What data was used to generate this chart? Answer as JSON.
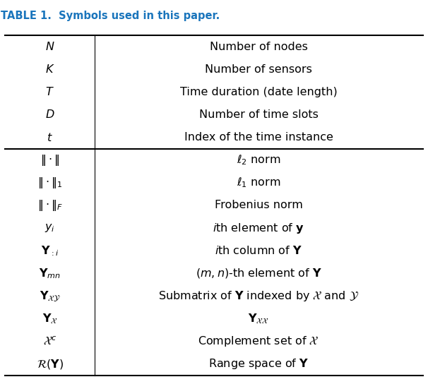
{
  "title": "TABLE 1.  Symbols used in this paper.",
  "title_fontsize": 10.5,
  "col_split": 0.22,
  "rows": [
    {
      "sym": "$N$",
      "desc": "Number of nodes",
      "group": 1
    },
    {
      "sym": "$K$",
      "desc": "Number of sensors",
      "group": 1
    },
    {
      "sym": "$T$",
      "desc": "Time duration (date length)",
      "group": 1
    },
    {
      "sym": "$D$",
      "desc": "Number of time slots",
      "group": 1
    },
    {
      "sym": "$t$",
      "desc": "Index of the time instance",
      "group": 1
    },
    {
      "sym": "$\\|\\cdot\\|$",
      "desc": "$\\ell_2$ norm",
      "group": 2
    },
    {
      "sym": "$\\|\\cdot\\|_1$",
      "desc": "$\\ell_1$ norm",
      "group": 2
    },
    {
      "sym": "$\\|\\cdot\\|_F$",
      "desc": "Frobenius norm",
      "group": 2
    },
    {
      "sym": "$y_i$",
      "desc": "$i$th element of $\\mathbf{y}$",
      "group": 2
    },
    {
      "sym": "$\\mathbf{Y}_{:i}$",
      "desc": "$i$th column of $\\mathbf{Y}$",
      "group": 2
    },
    {
      "sym": "$\\mathbf{Y}_{mn}$",
      "desc": "$(m,n)$-th element of $\\mathbf{Y}$",
      "group": 2
    },
    {
      "sym": "$\\mathbf{Y}_{\\mathcal{X}\\mathcal{Y}}$",
      "desc": "Submatrix of $\\mathbf{Y}$ indexed by $\\mathcal{X}$ and $\\mathcal{Y}$",
      "group": 2
    },
    {
      "sym": "$\\mathbf{Y}_{\\mathcal{X}}$",
      "desc": "$\\mathbf{Y}_{\\mathcal{X}\\mathcal{X}}$",
      "group": 2
    },
    {
      "sym": "$\\mathcal{X}^c$",
      "desc": "Complement set of $\\mathcal{X}$",
      "group": 2
    },
    {
      "sym": "$\\mathcal{R}(\\mathbf{Y})$",
      "desc": "Range space of $\\mathbf{Y}$",
      "group": 2
    }
  ],
  "bg_color": "#ffffff",
  "text_color": "#000000",
  "title_color": "#1a75bc",
  "line_color": "#000000",
  "body_fontsize": 11.5
}
